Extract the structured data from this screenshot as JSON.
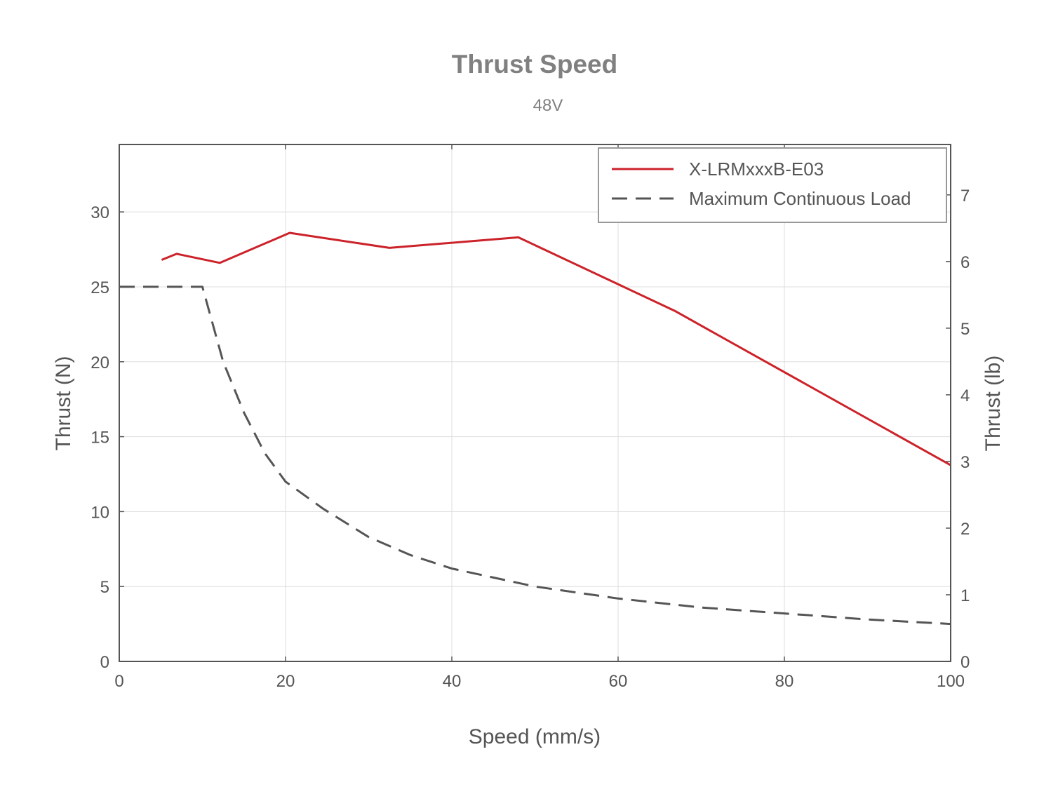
{
  "chart_data": {
    "type": "line",
    "title": "Thrust Speed",
    "subtitle": "48V",
    "xlabel": "Speed (mm/s)",
    "ylabel": "Thrust (N)",
    "y2label": "Thrust (lb)",
    "xlim": [
      0,
      100
    ],
    "ylim": [
      0,
      34.5
    ],
    "y2lim": [
      0,
      7.756
    ],
    "xticks": [
      0,
      20,
      40,
      60,
      80,
      100
    ],
    "yticks": [
      0,
      5,
      10,
      15,
      20,
      25,
      30
    ],
    "y2ticks": [
      0,
      1,
      2,
      3,
      4,
      5,
      6,
      7
    ],
    "grid": true,
    "legend_position": "top-right",
    "series": [
      {
        "name": "X-LRMxxxB-E03",
        "color": "#cc2229",
        "style": "solid",
        "x": [
          5.1,
          6.9,
          12.1,
          20.5,
          32.5,
          48.0,
          66.8,
          100.0
        ],
        "y": [
          26.8,
          27.2,
          26.6,
          28.6,
          27.6,
          28.3,
          23.4,
          13.1
        ]
      },
      {
        "name": "Maximum Continuous Load",
        "color": "#555555",
        "style": "dashed",
        "x": [
          0,
          10,
          12.5,
          15,
          17.5,
          20,
          24.5,
          30,
          35,
          40,
          50,
          60,
          70,
          80,
          90,
          100
        ],
        "y": [
          25,
          25,
          20,
          16.6,
          13.9,
          12,
          10.2,
          8.3,
          7.1,
          6.2,
          5.0,
          4.2,
          3.6,
          3.2,
          2.8,
          2.5
        ]
      }
    ]
  }
}
